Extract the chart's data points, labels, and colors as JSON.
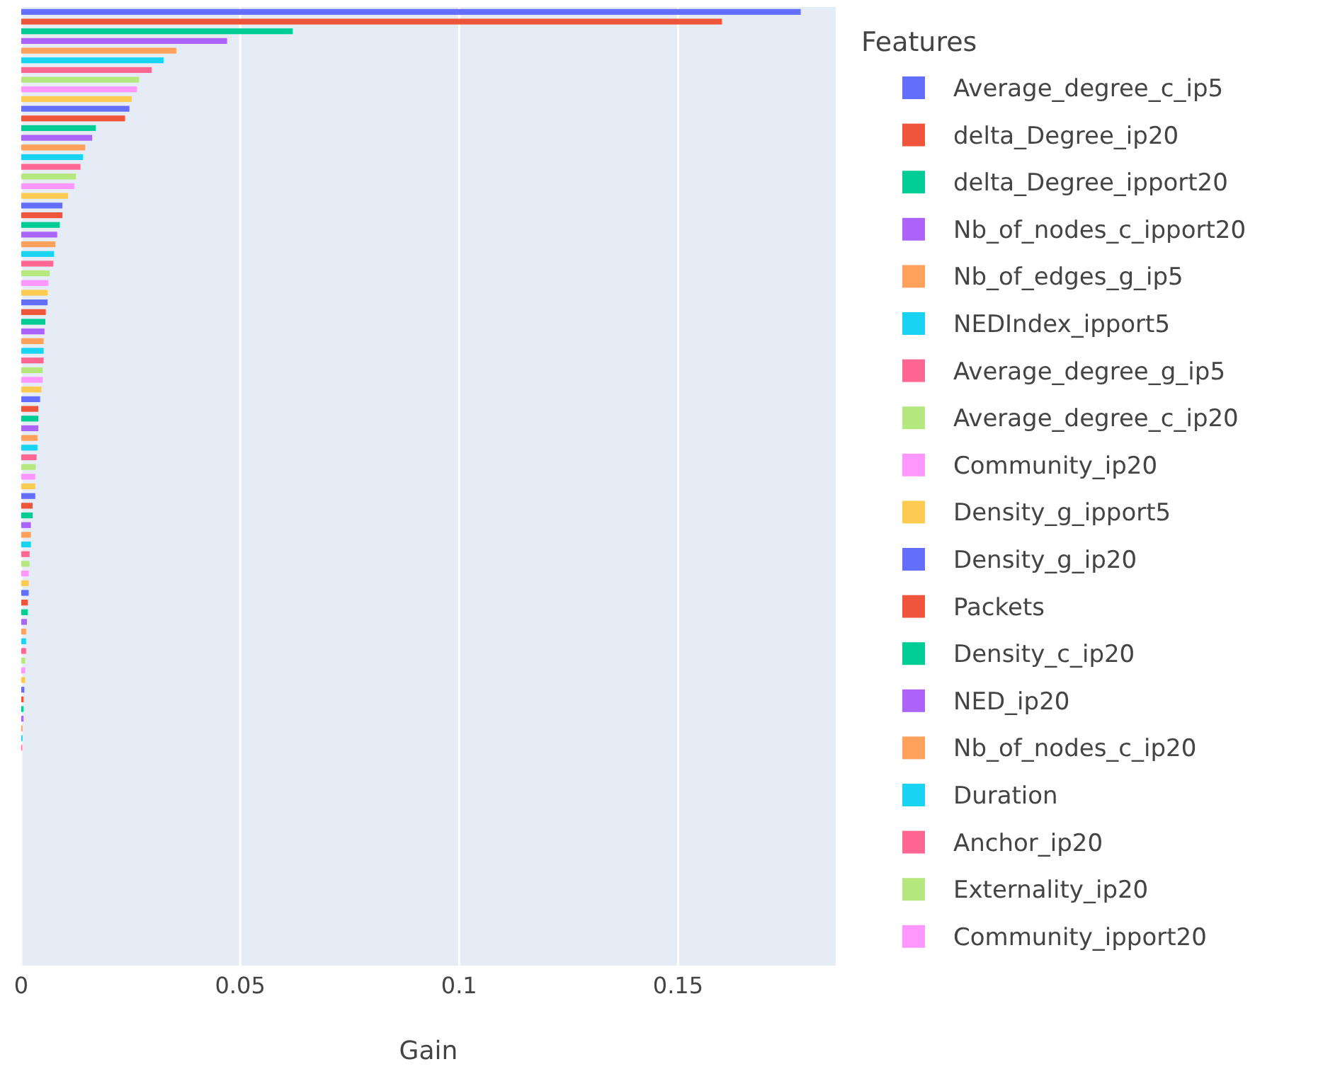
{
  "chart_data": {
    "type": "bar",
    "orientation": "horizontal",
    "xlabel": "Gain",
    "legend_title": "Features",
    "legend": "right",
    "grid": "x",
    "tick_labels": "x",
    "xlim": [
      0,
      0.186
    ],
    "xticks": [
      0,
      0.05,
      0.1,
      0.15
    ],
    "categories": [
      null,
      null,
      null,
      null,
      null,
      null,
      null,
      null,
      null,
      null,
      null,
      null,
      null,
      null,
      null,
      null,
      null,
      null,
      null,
      null,
      null,
      null,
      null,
      null,
      null,
      null,
      null,
      null,
      null,
      null,
      null,
      null,
      null,
      null,
      null,
      null,
      null,
      null,
      null,
      null,
      null,
      null,
      null,
      null,
      null,
      null,
      null,
      null,
      null,
      null,
      null,
      null,
      null,
      null,
      null,
      null,
      null,
      null,
      null,
      null,
      null,
      null,
      null,
      null,
      null,
      null,
      null,
      null,
      null,
      null,
      null,
      null,
      null,
      null,
      null,
      null,
      null,
      null,
      null,
      null,
      null,
      null,
      null,
      null,
      null,
      null,
      null,
      null,
      null,
      null,
      null,
      null,
      null,
      null,
      null,
      null,
      null,
      null,
      null
    ],
    "series": [
      {
        "name": "Average_degree_c_ip5",
        "color": "#636efa",
        "values": [
          0.178,
          null,
          null,
          null,
          null,
          null,
          null,
          null,
          null,
          null,
          null,
          null,
          null,
          null,
          null,
          null,
          null,
          null,
          null,
          null,
          null,
          null,
          null,
          null,
          null,
          null,
          null,
          null,
          null,
          null,
          null,
          null,
          null,
          null,
          null,
          null,
          null,
          null,
          null,
          null,
          null,
          null,
          null,
          null,
          null,
          null,
          null,
          null,
          null,
          null,
          null,
          null,
          null,
          null,
          null,
          null,
          null,
          null,
          null,
          null,
          null,
          null,
          null,
          null,
          null,
          null,
          null,
          null,
          null,
          null,
          null,
          null,
          null,
          null,
          null,
          null,
          null,
          null,
          null,
          null,
          null,
          null,
          null,
          null,
          null,
          null,
          null,
          null,
          null,
          null,
          null,
          null,
          null,
          null,
          null,
          null,
          null,
          null,
          null
        ]
      },
      {
        "name": "delta_Degree_ip20",
        "color": "#ef553b",
        "values": [
          null,
          0.16,
          null,
          null,
          null,
          null,
          null,
          null,
          null,
          null,
          null,
          null,
          null,
          null,
          null,
          null,
          null,
          null,
          null,
          null,
          null,
          null,
          null,
          null,
          null,
          null,
          null,
          null,
          null,
          null,
          null,
          null,
          null,
          null,
          null,
          null,
          null,
          null,
          null,
          null,
          null,
          null,
          null,
          null,
          null,
          null,
          null,
          null,
          null,
          null,
          null,
          null,
          null,
          null,
          null,
          null,
          null,
          null,
          null,
          null,
          null,
          null,
          null,
          null,
          null,
          null,
          null,
          null,
          null,
          null,
          null,
          null,
          null,
          null,
          null,
          null,
          null,
          null,
          null,
          null,
          null,
          null,
          null,
          null,
          null,
          null,
          null,
          null,
          null,
          null,
          null,
          null,
          null,
          null,
          null,
          null,
          null,
          null,
          null
        ]
      },
      {
        "name": "delta_Degree_ipport20",
        "color": "#00cc96",
        "values": [
          null,
          null,
          0.062,
          null,
          null,
          null,
          null,
          null,
          null,
          null,
          null,
          null,
          null,
          null,
          null,
          null,
          null,
          null,
          null,
          null,
          null,
          null,
          null,
          null,
          null,
          null,
          null,
          null,
          null,
          null,
          null,
          null,
          null,
          null,
          null,
          null,
          null,
          null,
          null,
          null,
          null,
          null,
          null,
          null,
          null,
          null,
          null,
          null,
          null,
          null,
          null,
          null,
          null,
          null,
          null,
          null,
          null,
          null,
          null,
          null,
          null,
          null,
          null,
          null,
          null,
          null,
          null,
          null,
          null,
          null,
          null,
          null,
          null,
          null,
          null,
          null,
          null,
          null,
          null,
          null,
          null,
          null,
          null,
          null,
          null,
          null,
          null,
          null,
          null,
          null,
          null,
          null,
          null,
          null,
          null,
          null,
          null,
          null,
          null
        ]
      },
      {
        "name": "Nb_of_nodes_c_ipport20",
        "color": "#ab63fa",
        "values": [
          null,
          null,
          null,
          0.047,
          null,
          null,
          null,
          null,
          null,
          null,
          null,
          null,
          null,
          null,
          null,
          null,
          null,
          null,
          null,
          null,
          null,
          null,
          null,
          null,
          null,
          null,
          null,
          null,
          null,
          null,
          null,
          null,
          null,
          null,
          null,
          null,
          null,
          null,
          null,
          null,
          null,
          null,
          null,
          null,
          null,
          null,
          null,
          null,
          null,
          null,
          null,
          null,
          null,
          null,
          null,
          null,
          null,
          null,
          null,
          null,
          null,
          null,
          null,
          null,
          null,
          null,
          null,
          null,
          null,
          null,
          null,
          null,
          null,
          null,
          null,
          null,
          null,
          null,
          null,
          null,
          null,
          null,
          null,
          null,
          null,
          null,
          null,
          null,
          null,
          null,
          null,
          null,
          null,
          null,
          null,
          null,
          null,
          null,
          null
        ]
      },
      {
        "name": "Nb_of_edges_g_ip5",
        "color": "#ffa15a",
        "values": [
          null,
          null,
          null,
          null,
          0.0354,
          null,
          null,
          null,
          null,
          null,
          null,
          null,
          null,
          null,
          null,
          null,
          null,
          null,
          null,
          null,
          null,
          null,
          null,
          null,
          null,
          null,
          null,
          null,
          null,
          null,
          null,
          null,
          null,
          null,
          null,
          null,
          null,
          null,
          null,
          null,
          null,
          null,
          null,
          null,
          null,
          null,
          null,
          null,
          null,
          null,
          null,
          null,
          null,
          null,
          null,
          null,
          null,
          null,
          null,
          null,
          null,
          null,
          null,
          null,
          null,
          null,
          null,
          null,
          null,
          null,
          null,
          null,
          null,
          null,
          null,
          null,
          null,
          null,
          null,
          null,
          null,
          null,
          null,
          null,
          null,
          null,
          null,
          null,
          null,
          null,
          null,
          null,
          null,
          null,
          null,
          null,
          null,
          null,
          null
        ]
      },
      {
        "name": "NEDIndex_ipport5",
        "color": "#19d3f3",
        "values": [
          null,
          null,
          null,
          null,
          null,
          0.0325,
          null,
          null,
          null,
          null,
          null,
          null,
          null,
          null,
          null,
          null,
          null,
          null,
          null,
          null,
          null,
          null,
          null,
          null,
          null,
          null,
          null,
          null,
          null,
          null,
          null,
          null,
          null,
          null,
          null,
          null,
          null,
          null,
          null,
          null,
          null,
          null,
          null,
          null,
          null,
          null,
          null,
          null,
          null,
          null,
          null,
          null,
          null,
          null,
          null,
          null,
          null,
          null,
          null,
          null,
          null,
          null,
          null,
          null,
          null,
          null,
          null,
          null,
          null,
          null,
          null,
          null,
          null,
          null,
          null,
          null,
          null,
          null,
          null,
          null,
          null,
          null,
          null,
          null,
          null,
          null,
          null,
          null,
          null,
          null,
          null,
          null,
          null,
          null,
          null,
          null,
          null,
          null,
          null
        ]
      },
      {
        "name": "Average_degree_g_ip5",
        "color": "#ff6692",
        "values": [
          null,
          null,
          null,
          null,
          null,
          null,
          0.0298,
          null,
          null,
          null,
          null,
          null,
          null,
          null,
          null,
          null,
          null,
          null,
          null,
          null,
          null,
          null,
          null,
          null,
          null,
          null,
          null,
          null,
          null,
          null,
          null,
          null,
          null,
          null,
          null,
          null,
          null,
          null,
          null,
          null,
          null,
          null,
          null,
          null,
          null,
          null,
          null,
          null,
          null,
          null,
          null,
          null,
          null,
          null,
          null,
          null,
          null,
          null,
          null,
          null,
          null,
          null,
          null,
          null,
          null,
          null,
          null,
          null,
          null,
          null,
          null,
          null,
          null,
          null,
          null,
          null,
          null,
          null,
          null,
          null,
          null,
          null,
          null,
          null,
          null,
          null,
          null,
          null,
          null,
          null,
          null,
          null,
          null,
          null,
          null,
          null,
          null,
          null,
          null
        ]
      },
      {
        "name": "Average_degree_c_ip20",
        "color": "#b6e880",
        "values": [
          null,
          null,
          null,
          null,
          null,
          null,
          null,
          0.0269,
          null,
          null,
          null,
          null,
          null,
          null,
          null,
          null,
          null,
          null,
          null,
          null,
          null,
          null,
          null,
          null,
          null,
          null,
          null,
          null,
          null,
          null,
          null,
          null,
          null,
          null,
          null,
          null,
          null,
          null,
          null,
          null,
          null,
          null,
          null,
          null,
          null,
          null,
          null,
          null,
          null,
          null,
          null,
          null,
          null,
          null,
          null,
          null,
          null,
          null,
          null,
          null,
          null,
          null,
          null,
          null,
          null,
          null,
          null,
          null,
          null,
          null,
          null,
          null,
          null,
          null,
          null,
          null,
          null,
          null,
          null,
          null,
          null,
          null,
          null,
          null,
          null,
          null,
          null,
          null,
          null,
          null,
          null,
          null,
          null,
          null,
          null,
          null,
          null,
          null,
          null
        ]
      },
      {
        "name": "Community_ip20",
        "color": "#ff97ff",
        "values": [
          null,
          null,
          null,
          null,
          null,
          null,
          null,
          null,
          0.0264,
          null,
          null,
          null,
          null,
          null,
          null,
          null,
          null,
          null,
          null,
          null,
          null,
          null,
          null,
          null,
          null,
          null,
          null,
          null,
          null,
          null,
          null,
          null,
          null,
          null,
          null,
          null,
          null,
          null,
          null,
          null,
          null,
          null,
          null,
          null,
          null,
          null,
          null,
          null,
          null,
          null,
          null,
          null,
          null,
          null,
          null,
          null,
          null,
          null,
          null,
          null,
          null,
          null,
          null,
          null,
          null,
          null,
          null,
          null,
          null,
          null,
          null,
          null,
          null,
          null,
          null,
          null,
          null,
          null,
          null,
          null,
          null,
          null,
          null,
          null,
          null,
          null,
          null,
          null,
          null,
          null,
          null,
          null,
          null,
          null,
          null,
          null,
          null,
          null,
          null
        ]
      },
      {
        "name": "Density_g_ipport5",
        "color": "#fecb52",
        "values": [
          null,
          null,
          null,
          null,
          null,
          null,
          null,
          null,
          null,
          0.0252,
          null,
          null,
          null,
          null,
          null,
          null,
          null,
          null,
          null,
          null,
          null,
          null,
          null,
          null,
          null,
          null,
          null,
          null,
          null,
          null,
          null,
          null,
          null,
          null,
          null,
          null,
          null,
          null,
          null,
          null,
          null,
          null,
          null,
          null,
          null,
          null,
          null,
          null,
          null,
          null,
          null,
          null,
          null,
          null,
          null,
          null,
          null,
          null,
          null,
          null,
          null,
          null,
          null,
          null,
          null,
          null,
          null,
          null,
          null,
          null,
          null,
          null,
          null,
          null,
          null,
          null,
          null,
          null,
          null,
          null,
          null,
          null,
          null,
          null,
          null,
          null,
          null,
          null,
          null,
          null,
          null,
          null,
          null,
          null,
          null,
          null,
          null,
          null,
          null
        ]
      },
      {
        "name": "Density_g_ip20",
        "color": "#636efa",
        "values": [
          null,
          null,
          null,
          null,
          null,
          null,
          null,
          null,
          null,
          null,
          0.0247,
          null,
          null,
          null,
          null,
          null,
          null,
          null,
          null,
          null,
          null,
          null,
          null,
          null,
          null,
          null,
          null,
          null,
          null,
          null,
          null,
          null,
          null,
          null,
          null,
          null,
          null,
          null,
          null,
          null,
          null,
          null,
          null,
          null,
          null,
          null,
          null,
          null,
          null,
          null,
          null,
          null,
          null,
          null,
          null,
          null,
          null,
          null,
          null,
          null,
          null,
          null,
          null,
          null,
          null,
          null,
          null,
          null,
          null,
          null,
          null,
          null,
          null,
          null,
          null,
          null,
          null,
          null,
          null,
          null,
          null,
          null,
          null,
          null,
          null,
          null,
          null,
          null,
          null,
          null,
          null,
          null,
          null,
          null,
          null,
          null,
          null,
          null,
          null
        ]
      },
      {
        "name": "Packets",
        "color": "#ef553b",
        "values": [
          null,
          null,
          null,
          null,
          null,
          null,
          null,
          null,
          null,
          null,
          null,
          0.0237,
          null,
          null,
          null,
          null,
          null,
          null,
          null,
          null,
          null,
          null,
          null,
          null,
          null,
          null,
          null,
          null,
          null,
          null,
          null,
          null,
          null,
          null,
          null,
          null,
          null,
          null,
          null,
          null,
          null,
          null,
          null,
          null,
          null,
          null,
          null,
          null,
          null,
          null,
          null,
          null,
          null,
          null,
          null,
          null,
          null,
          null,
          null,
          null,
          null,
          null,
          null,
          null,
          null,
          null,
          null,
          null,
          null,
          null,
          null,
          null,
          null,
          null,
          null,
          null,
          null,
          null,
          null,
          null,
          null,
          null,
          null,
          null,
          null,
          null,
          null,
          null,
          null,
          null,
          null,
          null,
          null,
          null,
          null,
          null,
          null,
          null,
          null
        ]
      },
      {
        "name": "Density_c_ip20",
        "color": "#00cc96",
        "values": [
          null,
          null,
          null,
          null,
          null,
          null,
          null,
          null,
          null,
          null,
          null,
          null,
          0.017,
          null,
          null,
          null,
          null,
          null,
          null,
          null,
          null,
          null,
          null,
          null,
          null,
          null,
          null,
          null,
          null,
          null,
          null,
          null,
          null,
          null,
          null,
          null,
          null,
          null,
          null,
          null,
          null,
          null,
          null,
          null,
          null,
          null,
          null,
          null,
          null,
          null,
          null,
          null,
          null,
          null,
          null,
          null,
          null,
          null,
          null,
          null,
          null,
          null,
          null,
          null,
          null,
          null,
          null,
          null,
          null,
          null,
          null,
          null,
          null,
          null,
          null,
          null,
          null,
          null,
          null,
          null,
          null,
          null,
          null,
          null,
          null,
          null,
          null,
          null,
          null,
          null,
          null,
          null,
          null,
          null,
          null,
          null,
          null,
          null,
          null
        ]
      },
      {
        "name": "NED_ip20",
        "color": "#ab63fa",
        "values": [
          null,
          null,
          null,
          null,
          null,
          null,
          null,
          null,
          null,
          null,
          null,
          null,
          null,
          0.0162,
          null,
          null,
          null,
          null,
          null,
          null,
          null,
          null,
          null,
          null,
          null,
          null,
          null,
          null,
          null,
          null,
          null,
          null,
          null,
          null,
          null,
          null,
          null,
          null,
          null,
          null,
          null,
          null,
          null,
          null,
          null,
          null,
          null,
          null,
          null,
          null,
          null,
          null,
          null,
          null,
          null,
          null,
          null,
          null,
          null,
          null,
          null,
          null,
          null,
          null,
          null,
          null,
          null,
          null,
          null,
          null,
          null,
          null,
          null,
          null,
          null,
          null,
          null,
          null,
          null,
          null,
          null,
          null,
          null,
          null,
          null,
          null,
          null,
          null,
          null,
          null,
          null,
          null,
          null,
          null,
          null,
          null,
          null,
          null,
          null
        ]
      },
      {
        "name": "Nb_of_nodes_c_ip20",
        "color": "#ffa15a",
        "values": [
          null,
          null,
          null,
          null,
          null,
          null,
          null,
          null,
          null,
          null,
          null,
          null,
          null,
          null,
          0.0146,
          null,
          null,
          null,
          null,
          null,
          null,
          null,
          null,
          null,
          null,
          null,
          null,
          null,
          null,
          null,
          null,
          null,
          null,
          null,
          null,
          null,
          null,
          null,
          null,
          null,
          null,
          null,
          null,
          null,
          null,
          null,
          null,
          null,
          null,
          null,
          null,
          null,
          null,
          null,
          null,
          null,
          null,
          null,
          null,
          null,
          null,
          null,
          null,
          null,
          null,
          null,
          null,
          null,
          null,
          null,
          null,
          null,
          null,
          null,
          null,
          null,
          null,
          null,
          null,
          null,
          null,
          null,
          null,
          null,
          null,
          null,
          null,
          null,
          null,
          null,
          null,
          null,
          null,
          null,
          null,
          null,
          null,
          null,
          null
        ]
      },
      {
        "name": "Duration",
        "color": "#19d3f3",
        "values": [
          null,
          null,
          null,
          null,
          null,
          null,
          null,
          null,
          null,
          null,
          null,
          null,
          null,
          null,
          null,
          0.0141,
          null,
          null,
          null,
          null,
          null,
          null,
          null,
          null,
          null,
          null,
          null,
          null,
          null,
          null,
          null,
          null,
          null,
          null,
          null,
          null,
          null,
          null,
          null,
          null,
          null,
          null,
          null,
          null,
          null,
          null,
          null,
          null,
          null,
          null,
          null,
          null,
          null,
          null,
          null,
          null,
          null,
          null,
          null,
          null,
          null,
          null,
          null,
          null,
          null,
          null,
          null,
          null,
          null,
          null,
          null,
          null,
          null,
          null,
          null,
          null,
          null,
          null,
          null,
          null,
          null,
          null,
          null,
          null,
          null,
          null,
          null,
          null,
          null,
          null,
          null,
          null,
          null,
          null,
          null,
          null,
          null,
          null,
          null
        ]
      },
      {
        "name": "Anchor_ip20",
        "color": "#ff6692",
        "values": [
          null,
          null,
          null,
          null,
          null,
          null,
          null,
          null,
          null,
          null,
          null,
          null,
          null,
          null,
          null,
          null,
          0.0135,
          null,
          null,
          null,
          null,
          null,
          null,
          null,
          null,
          null,
          null,
          null,
          null,
          null,
          null,
          null,
          null,
          null,
          null,
          null,
          null,
          null,
          null,
          null,
          null,
          null,
          null,
          null,
          null,
          null,
          null,
          null,
          null,
          null,
          null,
          null,
          null,
          null,
          null,
          null,
          null,
          null,
          null,
          null,
          null,
          null,
          null,
          null,
          null,
          null,
          null,
          null,
          null,
          null,
          null,
          null,
          null,
          null,
          null,
          null,
          null,
          null,
          null,
          null,
          null,
          null,
          null,
          null,
          null,
          null,
          null,
          null,
          null,
          null,
          null,
          null,
          null,
          null,
          null,
          null,
          null,
          null,
          null
        ]
      },
      {
        "name": "Externality_ip20",
        "color": "#b6e880",
        "values": [
          null,
          null,
          null,
          null,
          null,
          null,
          null,
          null,
          null,
          null,
          null,
          null,
          null,
          null,
          null,
          null,
          null,
          0.0125,
          null,
          null,
          null,
          null,
          null,
          null,
          null,
          null,
          null,
          null,
          null,
          null,
          null,
          null,
          null,
          null,
          null,
          null,
          null,
          null,
          null,
          null,
          null,
          null,
          null,
          null,
          null,
          null,
          null,
          null,
          null,
          null,
          null,
          null,
          null,
          null,
          null,
          null,
          null,
          null,
          null,
          null,
          null,
          null,
          null,
          null,
          null,
          null,
          null,
          null,
          null,
          null,
          null,
          null,
          null,
          null,
          null,
          null,
          null,
          null,
          null,
          null,
          null,
          null,
          null,
          null,
          null,
          null,
          null,
          null,
          null,
          null,
          null,
          null,
          null,
          null,
          null,
          null,
          null,
          null,
          null
        ]
      },
      {
        "name": "Community_ipport20",
        "color": "#ff97ff",
        "values": [
          null,
          null,
          null,
          null,
          null,
          null,
          null,
          null,
          null,
          null,
          null,
          null,
          null,
          null,
          null,
          null,
          null,
          null,
          0.0121,
          null,
          null,
          null,
          null,
          null,
          null,
          null,
          null,
          null,
          null,
          null,
          null,
          null,
          null,
          null,
          null,
          null,
          null,
          null,
          null,
          null,
          null,
          null,
          null,
          null,
          null,
          null,
          null,
          null,
          null,
          null,
          null,
          null,
          null,
          null,
          null,
          null,
          null,
          null,
          null,
          null,
          null,
          null,
          null,
          null,
          null,
          null,
          null,
          null,
          null,
          null,
          null,
          null,
          null,
          null,
          null,
          null,
          null,
          null,
          null,
          null,
          null,
          null,
          null,
          null,
          null,
          null,
          null,
          null,
          null,
          null,
          null,
          null,
          null,
          null,
          null,
          null,
          null,
          null,
          null
        ]
      },
      {
        "values": [
          null,
          null,
          null,
          null,
          null,
          null,
          null,
          null,
          null,
          null,
          null,
          null,
          null,
          null,
          null,
          null,
          null,
          null,
          null,
          0.0107,
          0.0094,
          0.0094,
          0.0088,
          0.0082,
          0.0078,
          0.0075,
          0.0073,
          0.0065,
          0.0062,
          0.006,
          0.006,
          0.0056,
          0.0055,
          0.0053,
          0.0051,
          0.0051,
          0.0051,
          0.0049,
          0.0049,
          0.0046,
          0.0043,
          0.0039,
          0.0039,
          0.0039,
          0.0037,
          0.0037,
          0.0035,
          0.0033,
          0.0032,
          0.0032,
          0.0032,
          0.0026,
          0.0026,
          0.0022,
          0.0022,
          0.0022,
          0.0019,
          0.0019,
          0.0017,
          0.0017,
          0.0017,
          0.0015,
          0.0015,
          0.0013,
          0.0011,
          0.0011,
          0.0011,
          0.0009,
          0.0009,
          0.0009,
          0.0007,
          0.0005,
          0.0005,
          0.0005,
          0.0003,
          0.0003,
          0.0002,
          0,
          0,
          0,
          0,
          0,
          0,
          0,
          0,
          0,
          0,
          0,
          0,
          0,
          0,
          0,
          0,
          0,
          0,
          0,
          0,
          0,
          0
        ],
        "colors": [
          null,
          null,
          null,
          null,
          null,
          null,
          null,
          null,
          null,
          null,
          null,
          null,
          null,
          null,
          null,
          null,
          null,
          null,
          null,
          "#fecb52",
          "#636efa",
          "#ef553b",
          "#00cc96",
          "#ab63fa",
          "#ffa15a",
          "#19d3f3",
          "#ff6692",
          "#b6e880",
          "#ff97ff",
          "#fecb52",
          "#636efa",
          "#ef553b",
          "#00cc96",
          "#ab63fa",
          "#ffa15a",
          "#19d3f3",
          "#ff6692",
          "#b6e880",
          "#ff97ff",
          "#fecb52",
          "#636efa",
          "#ef553b",
          "#00cc96",
          "#ab63fa",
          "#ffa15a",
          "#19d3f3",
          "#ff6692",
          "#b6e880",
          "#ff97ff",
          "#fecb52",
          "#636efa",
          "#ef553b",
          "#00cc96",
          "#ab63fa",
          "#ffa15a",
          "#19d3f3",
          "#ff6692",
          "#b6e880",
          "#ff97ff",
          "#fecb52",
          "#636efa",
          "#ef553b",
          "#00cc96",
          "#ab63fa",
          "#ffa15a",
          "#19d3f3",
          "#ff6692",
          "#b6e880",
          "#ff97ff",
          "#fecb52",
          "#636efa",
          "#ef553b",
          "#00cc96",
          "#ab63fa",
          "#ffa15a",
          "#19d3f3",
          "#ff6692",
          "#b6e880",
          "#ff97ff",
          "#fecb52",
          "#636efa",
          "#ef553b",
          "#00cc96",
          "#ab63fa",
          "#ffa15a",
          "#19d3f3",
          "#ff6692",
          "#b6e880",
          "#ff97ff",
          "#fecb52",
          "#636efa",
          "#ef553b",
          "#00cc96",
          "#ab63fa",
          "#ffa15a",
          "#19d3f3",
          "#ff6692",
          "#b6e880",
          "#ff97ff"
        ]
      }
    ]
  }
}
